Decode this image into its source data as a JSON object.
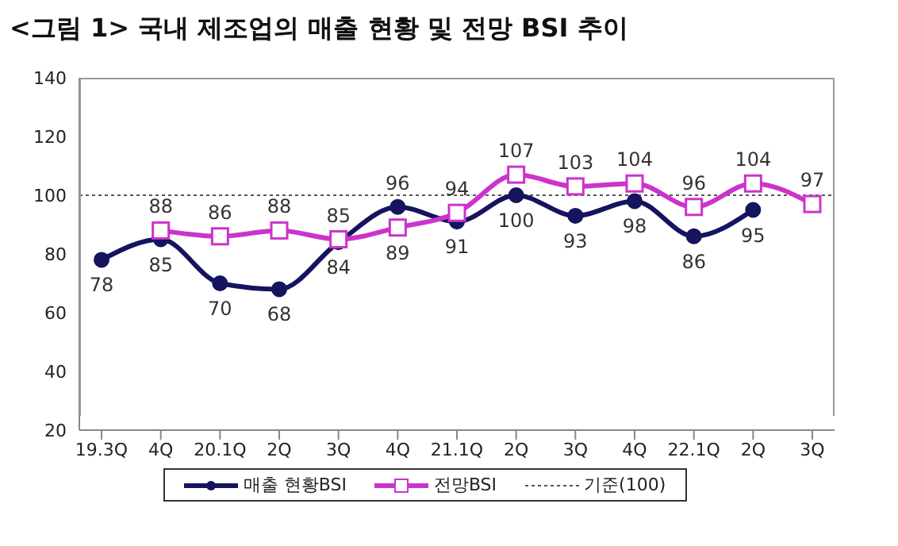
{
  "chart_data": {
    "type": "line",
    "title": "<그림 1> 국내 제조업의 매출 현황 및 전망 BSI 추이",
    "categories": [
      "19.3Q",
      "4Q",
      "20.1Q",
      "2Q",
      "3Q",
      "4Q",
      "21.1Q",
      "2Q",
      "3Q",
      "4Q",
      "22.1Q",
      "2Q",
      "3Q"
    ],
    "series": [
      {
        "name": "매출 현황BSI",
        "color": "#14145f",
        "marker": "circle",
        "line_style": "solid",
        "values": [
          78,
          85,
          70,
          68,
          84,
          96,
          91,
          100,
          93,
          98,
          86,
          95,
          null
        ]
      },
      {
        "name": "전망BSI",
        "color": "#cc33cc",
        "marker": "square",
        "line_style": "solid",
        "values": [
          null,
          88,
          86,
          88,
          85,
          89,
          94,
          107,
          103,
          104,
          96,
          104,
          97
        ]
      }
    ],
    "ref_lines": [
      {
        "axis": "y",
        "value": 100,
        "label": "기준(100)",
        "color": "#555555",
        "line_style": "dotted"
      }
    ],
    "ylim": [
      20,
      140
    ],
    "yticks": [
      20,
      40,
      60,
      80,
      100,
      120,
      140
    ],
    "data_labels": true,
    "grid": false,
    "legend": "bottom"
  }
}
